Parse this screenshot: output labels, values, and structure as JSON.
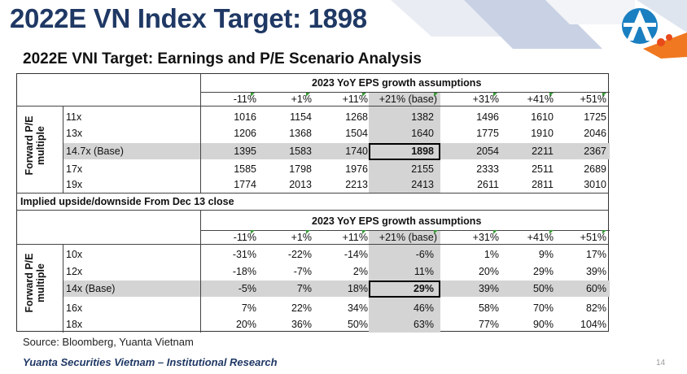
{
  "slide": {
    "title": "2022E VN Index Target: 1898",
    "subtitle": "2022E VNI Target: Earnings and P/E Scenario Analysis",
    "source": "Source: Bloomberg, Yuanta Vietnam",
    "footer": "Yuanta Securities Vietnam – Institutional Research",
    "page_number": "14",
    "colors": {
      "title": "#1f3864",
      "highlight": "#d4d4d4",
      "accent_orange": "#f07820",
      "accent_blue": "#1a7fc1"
    },
    "logo_icon": "yuanta-logo-icon"
  },
  "table1": {
    "group_header": "2023 YoY EPS growth assumptions",
    "side_label_line1": "Forward P/E",
    "side_label_line2": "multiple",
    "columns": [
      "-11%",
      "+1%",
      "+11%",
      "+21% (base)",
      "+31%",
      "+41%",
      "+51%"
    ],
    "rows": [
      {
        "label": "11x",
        "values": [
          "1016",
          "1154",
          "1268",
          "1382",
          "1496",
          "1610",
          "1725"
        ]
      },
      {
        "label": "13x",
        "values": [
          "1206",
          "1368",
          "1504",
          "1640",
          "1775",
          "1910",
          "2046"
        ]
      },
      {
        "label": "14.7x (Base)",
        "values": [
          "1395",
          "1583",
          "1740",
          "1898",
          "2054",
          "2211",
          "2367"
        ]
      },
      {
        "label": "17x",
        "values": [
          "1585",
          "1798",
          "1976",
          "2155",
          "2333",
          "2511",
          "2689"
        ]
      },
      {
        "label": "19x",
        "values": [
          "1774",
          "2013",
          "2213",
          "2413",
          "2611",
          "2811",
          "3010"
        ]
      }
    ]
  },
  "table2": {
    "section_label": "Implied upside/downside From Dec 13 close",
    "group_header": "2023 YoY EPS growth assumptions",
    "side_label_line1": "Forward P/E",
    "side_label_line2": "multiple",
    "columns": [
      "-11%",
      "+1%",
      "+11%",
      "+21% (base)",
      "+31%",
      "+41%",
      "+51%"
    ],
    "rows": [
      {
        "label": "10x",
        "values": [
          "-31%",
          "-22%",
          "-14%",
          "-6%",
          "1%",
          "9%",
          "17%"
        ]
      },
      {
        "label": "12x",
        "values": [
          "-18%",
          "-7%",
          "2%",
          "11%",
          "20%",
          "29%",
          "39%"
        ]
      },
      {
        "label": "14x (Base)",
        "values": [
          "-5%",
          "7%",
          "18%",
          "29%",
          "39%",
          "50%",
          "60%"
        ]
      },
      {
        "label": "16x",
        "values": [
          "7%",
          "22%",
          "34%",
          "46%",
          "58%",
          "70%",
          "82%"
        ]
      },
      {
        "label": "18x",
        "values": [
          "20%",
          "36%",
          "50%",
          "63%",
          "77%",
          "90%",
          "104%"
        ]
      }
    ]
  }
}
